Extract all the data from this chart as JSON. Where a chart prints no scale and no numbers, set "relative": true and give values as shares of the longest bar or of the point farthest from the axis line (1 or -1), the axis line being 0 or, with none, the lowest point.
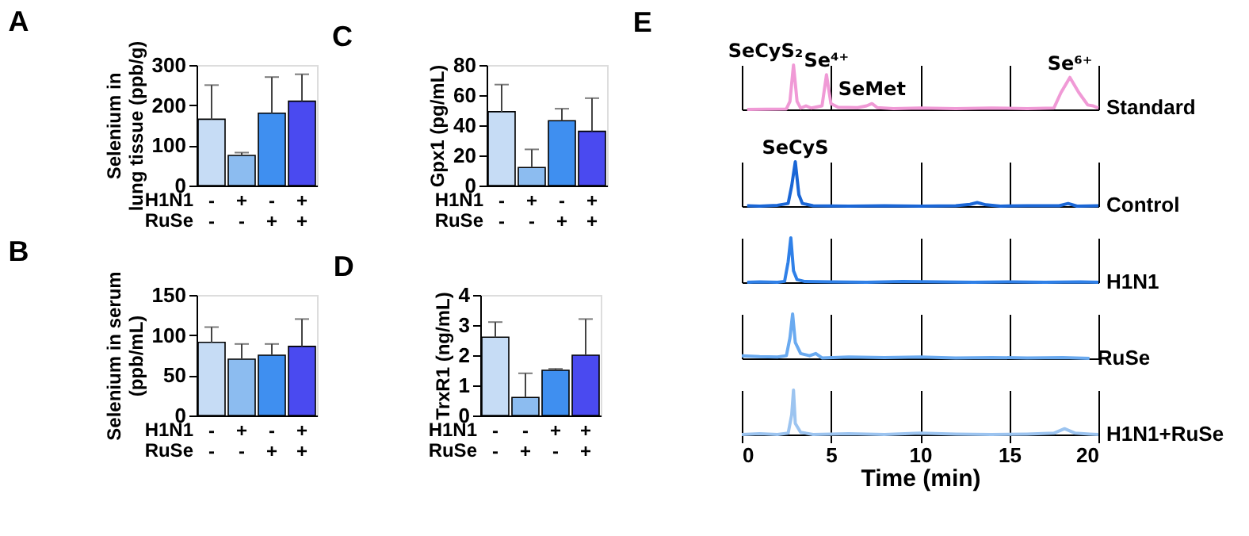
{
  "chart_data": [
    {
      "type": "bar",
      "title": "A",
      "ylabel": "Selenium in\nlung tissue (ppb/g)",
      "xlabel": "H1N1\nRuSe",
      "categories": [
        "-\n-",
        "+\n-",
        "-\n+",
        "+\n+"
      ],
      "values": [
        165,
        75,
        180,
        210
      ],
      "errors": [
        [
          165,
          250
        ],
        [
          75,
          82
        ],
        [
          180,
          270
        ],
        [
          210,
          277
        ]
      ],
      "colors": [
        "#c6dcf5",
        "#8cbcf0",
        "#3f8ff0",
        "#4a4af0"
      ],
      "ylim": [
        0,
        300
      ],
      "yticks": [
        0,
        100,
        200,
        300
      ]
    },
    {
      "type": "bar",
      "title": "C",
      "ylabel": "Gpx1 (pg/mL)",
      "xlabel": "H1N1\nRuSe",
      "categories": [
        "-\n-",
        "+\n-",
        "-\n+",
        "+\n+"
      ],
      "values": [
        49,
        12,
        43,
        36
      ],
      "errors": [
        [
          49,
          67
        ],
        [
          12,
          24
        ],
        [
          43,
          51
        ],
        [
          36,
          58
        ]
      ],
      "colors": [
        "#c6dcf5",
        "#8cbcf0",
        "#3f8ff0",
        "#4a4af0"
      ],
      "ylim": [
        0,
        80
      ],
      "yticks": [
        0,
        20,
        40,
        60,
        80
      ]
    },
    {
      "type": "bar",
      "title": "B",
      "ylabel": "Selenium in serum\n(ppb/mL)",
      "xlabel": "H1N1\nRuSe",
      "categories": [
        "-\n-",
        "+\n-",
        "-\n+",
        "+\n+"
      ],
      "values": [
        91,
        70,
        75,
        86
      ],
      "errors": [
        [
          91,
          110
        ],
        [
          70,
          89
        ],
        [
          75,
          89
        ],
        [
          86,
          120
        ]
      ],
      "colors": [
        "#c6dcf5",
        "#8cbcf0",
        "#3f8ff0",
        "#4a4af0"
      ],
      "ylim": [
        0,
        150
      ],
      "yticks": [
        0,
        50,
        100,
        150
      ]
    },
    {
      "type": "bar",
      "title": "D",
      "ylabel": "TrxR1 (ng/mL)",
      "xlabel": "H1N1\nRuSe",
      "categories": [
        "-\n-",
        "-\n+",
        "+\n-",
        "+\n+"
      ],
      "values": [
        2.6,
        0.6,
        1.5,
        2.0
      ],
      "errors": [
        [
          2.6,
          3.1
        ],
        [
          0.6,
          1.4
        ],
        [
          1.5,
          1.55
        ],
        [
          2.0,
          3.2
        ]
      ],
      "colors": [
        "#c6dcf5",
        "#8cbcf0",
        "#3f8ff0",
        "#4a4af0"
      ],
      "ylim": [
        0,
        4
      ],
      "yticks": [
        0,
        1,
        2,
        3,
        4
      ]
    },
    {
      "type": "line",
      "title": "E",
      "relative": true,
      "xlim": [
        0,
        20
      ],
      "xticks": [
        0,
        5,
        10,
        15,
        20
      ],
      "grid": "x",
      "tick_labels": false,
      "annotations": [
        {
          "text": "SeCyS₂",
          "x": 2.9,
          "y": 1.0
        },
        {
          "text": "Se⁴⁺",
          "x": 4.75,
          "y": 0.78
        },
        {
          "text": "SeMet",
          "x": 7.3,
          "y": 0.15
        },
        {
          "text": "Se⁶⁺",
          "x": 18.4,
          "y": 0.72
        }
      ],
      "series": [
        {
          "name": "Standard",
          "color": "#f09ad6",
          "x": [
            0.3,
            2.5,
            2.7,
            2.9,
            3.1,
            3.3,
            3.6,
            3.9,
            4.5,
            4.75,
            5.0,
            5.4,
            6.5,
            7.0,
            7.3,
            7.6,
            8.5,
            10,
            12,
            14,
            16,
            17.5,
            17.9,
            18.4,
            18.9,
            19.4,
            19.7,
            20
          ],
          "values": [
            0,
            0.01,
            0.18,
            1.0,
            0.18,
            0.03,
            0.08,
            0.03,
            0.08,
            0.78,
            0.13,
            0.05,
            0.04,
            0.08,
            0.13,
            0.04,
            0.02,
            0.03,
            0.02,
            0.03,
            0.02,
            0.03,
            0.38,
            0.72,
            0.38,
            0.1,
            0.08,
            0.03
          ]
        }
      ]
    },
    {
      "type": "line",
      "relative": true,
      "xlim": [
        0,
        20
      ],
      "xticks": [
        0,
        5,
        10,
        15,
        20
      ],
      "grid": "x",
      "tick_labels": false,
      "annotations": [
        {
          "text": "SeCyS",
          "x": 3.0,
          "y": 1.0
        }
      ],
      "series": [
        {
          "name": "Control",
          "color": "#1a66d6",
          "x": [
            0.3,
            1,
            2,
            2.6,
            2.8,
            3.0,
            3.2,
            3.4,
            4,
            6,
            8,
            10,
            12,
            12.8,
            13.2,
            13.7,
            14.5,
            16,
            17.8,
            18.3,
            18.8,
            20
          ],
          "values": [
            0.01,
            0,
            0.02,
            0.06,
            0.46,
            1.0,
            0.26,
            0.06,
            0.01,
            0,
            0.01,
            0,
            0.01,
            0.04,
            0.08,
            0.03,
            0,
            0.01,
            0.01,
            0.06,
            0,
            0.01
          ]
        }
      ]
    },
    {
      "type": "line",
      "relative": true,
      "xlim": [
        0,
        20
      ],
      "xticks": [
        0,
        5,
        10,
        15,
        20
      ],
      "grid": "x",
      "tick_labels": false,
      "series": [
        {
          "name": "H1N1",
          "color": "#2f80e8",
          "x": [
            0.3,
            1,
            2,
            2.4,
            2.6,
            2.75,
            2.9,
            3.1,
            3.5,
            5,
            7,
            9,
            11,
            13,
            15,
            17,
            19,
            20
          ],
          "values": [
            0,
            0.01,
            0,
            0.02,
            0.46,
            1.0,
            0.26,
            0.06,
            0.02,
            0.01,
            0,
            0.02,
            0.01,
            0,
            0.01,
            0,
            0.01,
            0
          ]
        }
      ]
    },
    {
      "type": "line",
      "relative": true,
      "xlim": [
        0,
        20
      ],
      "xticks": [
        0,
        5,
        10,
        15,
        20
      ],
      "grid": "x",
      "tick_labels": false,
      "series": [
        {
          "name": "RuSe",
          "color": "#6aaaf0",
          "x": [
            0,
            1,
            2,
            2.5,
            2.7,
            2.85,
            3.0,
            3.3,
            3.8,
            4.15,
            4.5,
            6,
            8,
            10,
            12,
            14,
            16,
            18,
            19.5
          ],
          "values": [
            0.06,
            0.04,
            0.03,
            0.06,
            0.46,
            1.0,
            0.36,
            0.11,
            0.06,
            0.11,
            0.01,
            0.03,
            0.02,
            0.03,
            0.01,
            0.02,
            0.01,
            0.02,
            0
          ]
        }
      ]
    },
    {
      "type": "line",
      "relative": true,
      "xlim": [
        0,
        20
      ],
      "xticks": [
        0,
        5,
        10,
        15,
        20
      ],
      "grid": "x",
      "tick_labels": "x",
      "xlabel": "Time (min)",
      "series": [
        {
          "name": "H1N1+RuSe",
          "color": "#9cc4f0",
          "x": [
            0,
            1,
            2,
            2.6,
            2.8,
            2.9,
            3.0,
            3.3,
            4,
            6,
            8,
            10,
            12,
            14,
            16,
            17.5,
            18.1,
            18.7,
            19.5,
            20
          ],
          "values": [
            0,
            0.02,
            0,
            0.03,
            0.45,
            1.0,
            0.25,
            0.05,
            0,
            0.02,
            0,
            0.03,
            0.01,
            0,
            0.01,
            0.03,
            0.13,
            0.03,
            0.01,
            0
          ]
        }
      ]
    }
  ]
}
